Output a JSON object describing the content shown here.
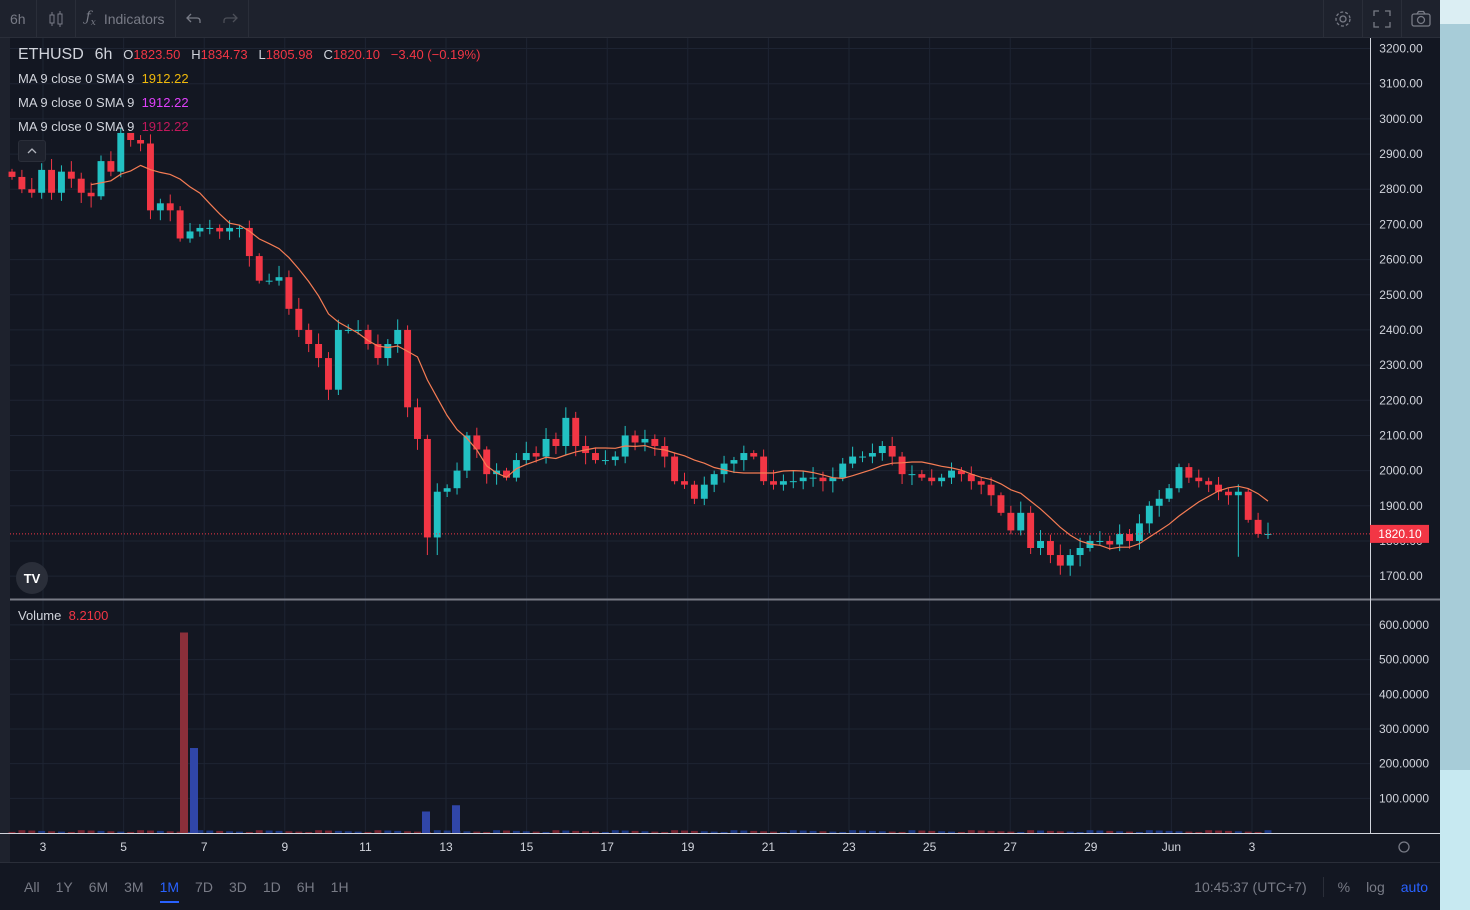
{
  "toolbar": {
    "interval": "6h",
    "indicators_label": "Indicators",
    "icons": [
      "candles-icon",
      "fx-icon",
      "undo-icon",
      "redo-icon",
      "settings-icon",
      "fullscreen-icon",
      "camera-icon"
    ]
  },
  "legend": {
    "symbol": "ETHUSD",
    "interval": "6h",
    "o_label": "O",
    "o_value": "1823.50",
    "h_label": "H",
    "h_value": "1834.73",
    "l_label": "L",
    "l_value": "1805.98",
    "c_label": "C",
    "c_value": "1820.10",
    "change": "−3.40 (−0.19%)",
    "ma_lines": [
      {
        "label": "MA 9 close 0 SMA 9",
        "value": "1912.22",
        "color": "#f0b90b"
      },
      {
        "label": "MA 9 close 0 SMA 9",
        "value": "1912.22",
        "color": "#e040fb"
      },
      {
        "label": "MA 9 close 0 SMA 9",
        "value": "1912.22",
        "color": "#c2185b"
      }
    ]
  },
  "volume": {
    "label": "Volume",
    "value": "8.2100"
  },
  "chart_data": {
    "type": "candlestick",
    "symbol": "ETHUSD",
    "interval": "6h",
    "price_axis": [
      "3200.00",
      "3100.00",
      "3000.00",
      "2900.00",
      "2800.00",
      "2700.00",
      "2600.00",
      "2500.00",
      "2400.00",
      "2300.00",
      "2200.00",
      "2100.00",
      "2000.00",
      "1900.00",
      "1800.00",
      "1700.00"
    ],
    "price_range": [
      1635,
      3230
    ],
    "last_price": "1820.10",
    "volume_axis": [
      "600.0000",
      "500.0000",
      "400.0000",
      "300.0000",
      "200.0000",
      "100.0000"
    ],
    "volume_range": [
      0,
      640
    ],
    "time_axis": [
      "3",
      "5",
      "7",
      "9",
      "11",
      "13",
      "15",
      "17",
      "19",
      "21",
      "23",
      "25",
      "27",
      "29",
      "Jun",
      "3"
    ],
    "closes": [
      2835,
      2800,
      2790,
      2855,
      2790,
      2850,
      2830,
      2790,
      2780,
      2880,
      2850,
      2960,
      2940,
      2930,
      2740,
      2760,
      2740,
      2660,
      2680,
      2690,
      2690,
      2680,
      2690,
      2690,
      2610,
      2540,
      2540,
      2550,
      2460,
      2400,
      2360,
      2320,
      2230,
      2400,
      2400,
      2400,
      2360,
      2320,
      2360,
      2400,
      2180,
      2090,
      1810,
      1940,
      1950,
      2000,
      2100,
      2060,
      1990,
      2000,
      1980,
      2030,
      2050,
      2040,
      2090,
      2070,
      2150,
      2070,
      2050,
      2030,
      2030,
      2040,
      2100,
      2080,
      2090,
      2070,
      2040,
      1970,
      1960,
      1920,
      1960,
      1990,
      2020,
      2030,
      2050,
      2040,
      1970,
      1960,
      1970,
      1970,
      1980,
      1980,
      1970,
      1980,
      2020,
      2040,
      2040,
      2050,
      2070,
      2040,
      1990,
      1990,
      1980,
      1970,
      1980,
      2000,
      1990,
      1970,
      1960,
      1930,
      1880,
      1830,
      1880,
      1780,
      1800,
      1760,
      1730,
      1760,
      1780,
      1800,
      1800,
      1790,
      1820,
      1800,
      1850,
      1900,
      1920,
      1950,
      2010,
      1980,
      1970,
      1960,
      1940,
      1930,
      1940,
      1860,
      1820,
      1820
    ],
    "sma9_last": "1912.22",
    "volume_spikes": [
      {
        "x": "6",
        "value": 578
      },
      {
        "x": "6",
        "value": 245
      },
      {
        "x": "12",
        "value": 62
      },
      {
        "x": "12",
        "value": 80
      }
    ]
  },
  "bottom": {
    "ranges": [
      "All",
      "1Y",
      "3M",
      "3M",
      "1M",
      "7D",
      "3D",
      "1D",
      "6H",
      "1H"
    ],
    "active_range": "1M",
    "time": "10:45:37 (UTC+7)",
    "percent": "%",
    "log": "log",
    "auto": "auto"
  },
  "colors": {
    "up": "#26a69a",
    "up_body": "#22c1c3",
    "down": "#f23645",
    "sma": "#f57c54",
    "background": "#131722"
  }
}
